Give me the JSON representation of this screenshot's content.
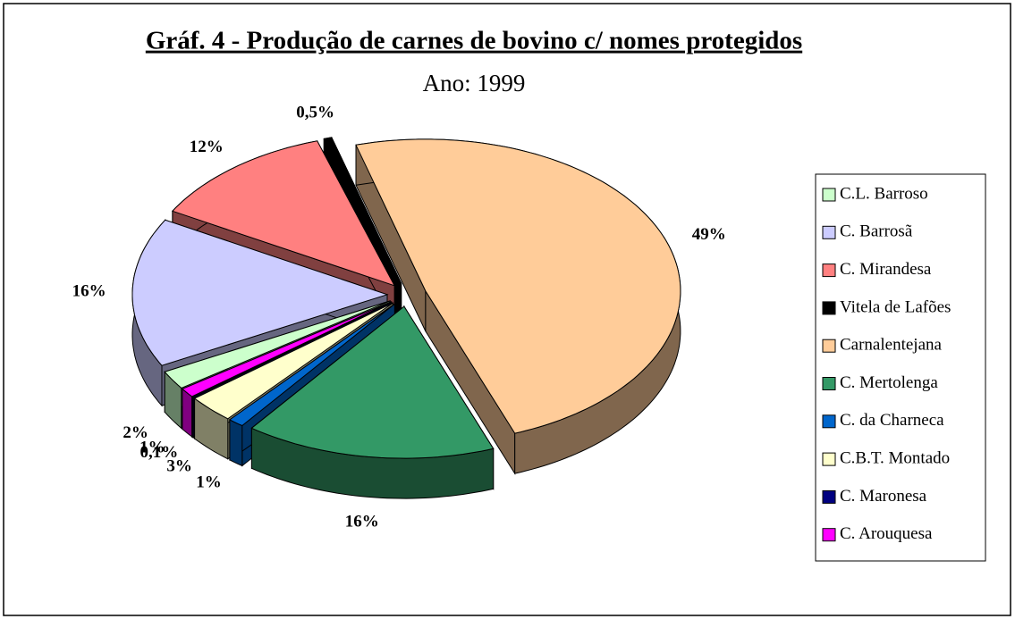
{
  "chart_data": {
    "type": "pie",
    "title": "Gráf. 4 - Produção de carnes de bovino c/ nomes protegidos",
    "subtitle": "Ano: 1999",
    "categories": [
      "C.L. Barroso",
      "C. Barrosã",
      "C. Mirandesa",
      "Vitela de Lafões",
      "Carnalentejana",
      "C. Mertolenga",
      "C. da Charneca",
      "C.B.T. Montado",
      "C. Maronesa",
      "C. Arouquesa"
    ],
    "values": [
      2,
      16,
      12,
      0.5,
      49,
      16,
      1,
      3,
      0.1,
      1
    ],
    "value_labels": [
      "2%",
      "16%",
      "12%",
      "0,5%",
      "49%",
      "16%",
      "1%",
      "3%",
      "0,1%",
      "1%"
    ],
    "colors": [
      "#ccffcc",
      "#ccccff",
      "#ff8080",
      "#000000",
      "#ffcc99",
      "#339966",
      "#0066cc",
      "#ffffcc",
      "#000080",
      "#ff00ff"
    ],
    "legend": "right"
  }
}
